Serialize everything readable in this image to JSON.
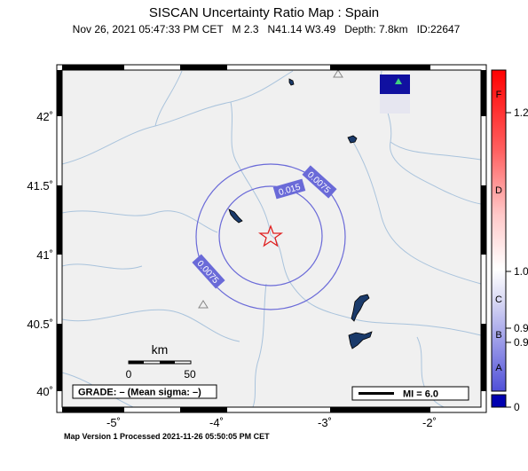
{
  "title": "SISCAN Uncertainty Ratio Map : Spain",
  "subtitle": "Nov 26, 2021 05:47:33 PM CET   M 2.3   N41.14 W3.49   Depth: 7.8km   ID:22647",
  "footer": "Map Version 1 Processed 2021-11-26 05:50:05 PM CET",
  "map": {
    "lon_ticks": [
      "-5˚",
      "-4˚",
      "-3˚",
      "-2˚"
    ],
    "lat_ticks": [
      "42˚",
      "41.5˚",
      "41˚",
      "40.5˚",
      "40˚"
    ],
    "contours": [
      {
        "label": "0.015",
        "label_top": "0.015"
      },
      {
        "label": "0.0075",
        "label_top": "0.0075",
        "label_bottom": "0.0075"
      }
    ],
    "scale": {
      "unit": "km",
      "ticks": [
        "0",
        "50"
      ]
    },
    "grade_text": "GRADE: – (Mean sigma: –)",
    "mi_legend": "MI = 6.0",
    "colors": {
      "land": "#f0f0f0",
      "river": "#a9c3dc",
      "contour": "#6a6ad8",
      "epicenter": "#e02020",
      "lake": "#1a3a6a"
    }
  },
  "colorbar": {
    "letters": [
      "F",
      "D",
      "C",
      "B",
      "A"
    ],
    "values": [
      "1.2",
      "1.0",
      "0.9",
      "0.9",
      "0"
    ]
  }
}
